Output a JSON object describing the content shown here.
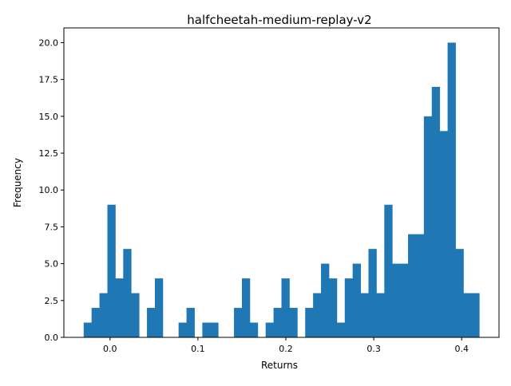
{
  "chart_data": {
    "type": "bar",
    "title": "halfcheetah-medium-replay-v2",
    "xlabel": "Returns",
    "ylabel": "Frequency",
    "xlim": [
      -0.0525,
      0.4425
    ],
    "ylim": [
      0,
      21
    ],
    "grid": false,
    "legend": "none",
    "bin_start": -0.03,
    "bin_width": 0.009,
    "counts": [
      1,
      2,
      3,
      9,
      4,
      6,
      3,
      0,
      2,
      4,
      0,
      0,
      1,
      2,
      0,
      1,
      1,
      0,
      0,
      2,
      4,
      1,
      0,
      1,
      2,
      4,
      2,
      0,
      2,
      3,
      5,
      4,
      1,
      4,
      5,
      3,
      6,
      3,
      9,
      5,
      5,
      7,
      7,
      15,
      17,
      14,
      20,
      6,
      3,
      3
    ],
    "xticks": [
      0.0,
      0.1,
      0.2,
      0.3,
      0.4
    ],
    "xtick_labels": [
      "0.0",
      "0.1",
      "0.2",
      "0.3",
      "0.4"
    ],
    "yticks": [
      0,
      2.5,
      5,
      7.5,
      10,
      12.5,
      15,
      17.5,
      20
    ],
    "ytick_labels": [
      "0.0",
      "2.5",
      "5.0",
      "7.5",
      "10.0",
      "12.5",
      "15.0",
      "17.5",
      "20.0"
    ],
    "bar_color": "#1f77b4"
  }
}
